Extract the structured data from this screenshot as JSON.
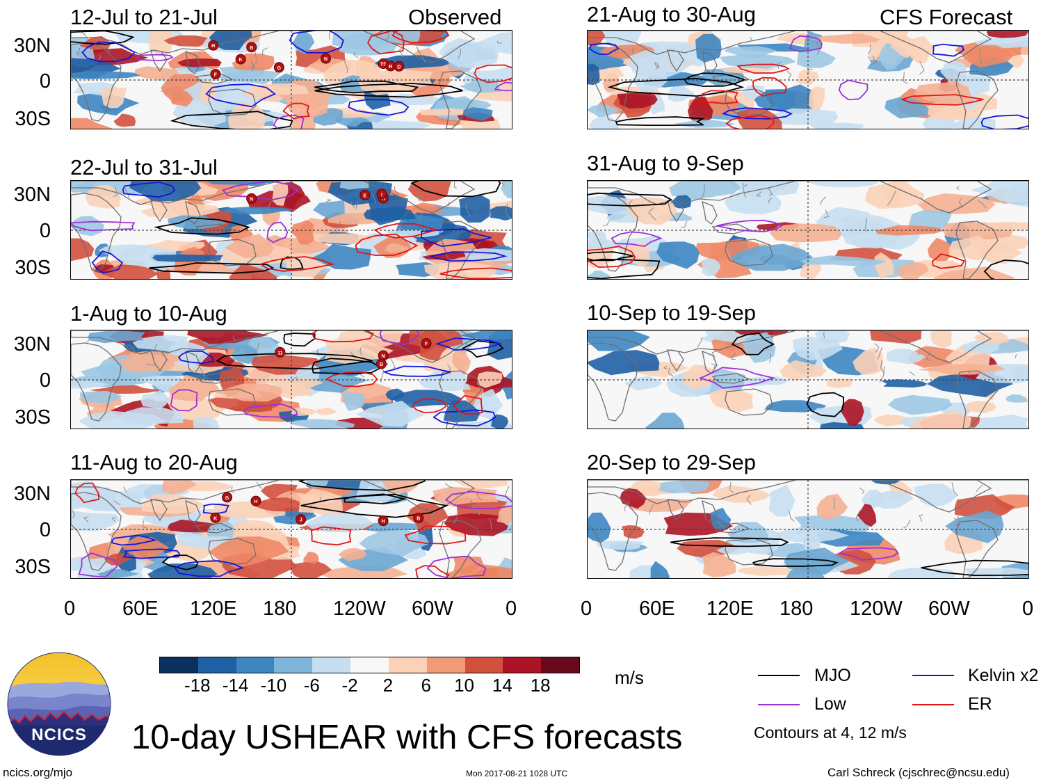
{
  "observed_label": "Observed",
  "forecast_label": "CFS Forecast",
  "observed_panels": [
    {
      "title": "12-Jul to 21-Jul",
      "storms": [
        "TS",
        "R",
        "N",
        "K",
        "B",
        "F",
        "G",
        "H",
        "D"
      ]
    },
    {
      "title": "22-Jul to 31-Jul",
      "storms": [
        "H",
        "N",
        "I",
        "E"
      ]
    },
    {
      "title": "1-Aug to 10-Aug",
      "storms": [
        "N",
        "B",
        "11",
        "F"
      ]
    },
    {
      "title": "11-Aug to 20-Aug",
      "storms": [
        "H",
        "B",
        "K",
        "J",
        "G",
        "H"
      ]
    }
  ],
  "forecast_panels": [
    {
      "title": "21-Aug to 30-Aug"
    },
    {
      "title": "31-Aug to 9-Sep"
    },
    {
      "title": "10-Sep to 19-Sep"
    },
    {
      "title": "20-Sep to 29-Sep"
    }
  ],
  "lat_labels": [
    "30N",
    "0",
    "30S"
  ],
  "lon_labels": [
    "0",
    "60E",
    "120E",
    "180",
    "120W",
    "60W",
    "0"
  ],
  "colorbar": {
    "unit": "m/s",
    "labels": [
      "-18",
      "-14",
      "-10",
      "-6",
      "-2",
      "2",
      "6",
      "10",
      "14",
      "18"
    ],
    "colors": [
      "#0b2f5e",
      "#1f5fa4",
      "#3d86c2",
      "#7fb5da",
      "#c6def0",
      "#f8f8f8",
      "#fbd1b8",
      "#f19a78",
      "#d2503e",
      "#ac1425",
      "#670a1c"
    ]
  },
  "legend": [
    {
      "label": "MJO",
      "color": "#000000"
    },
    {
      "label": "Kelvin x2",
      "color": "#1515d8"
    },
    {
      "label": "Low",
      "color": "#9b30d8"
    },
    {
      "label": "ER",
      "color": "#e01515"
    }
  ],
  "contour_note": "Contours at 4, 12 m/s",
  "main_title": "10-day USHEAR with CFS forecasts",
  "logo_text": "NCICS",
  "footer": {
    "left": "ncics.org/mjo",
    "center": "Mon 2017-08-21 1028 UTC",
    "right": "Carl Schreck (cjschrec@ncsu.edu)"
  }
}
